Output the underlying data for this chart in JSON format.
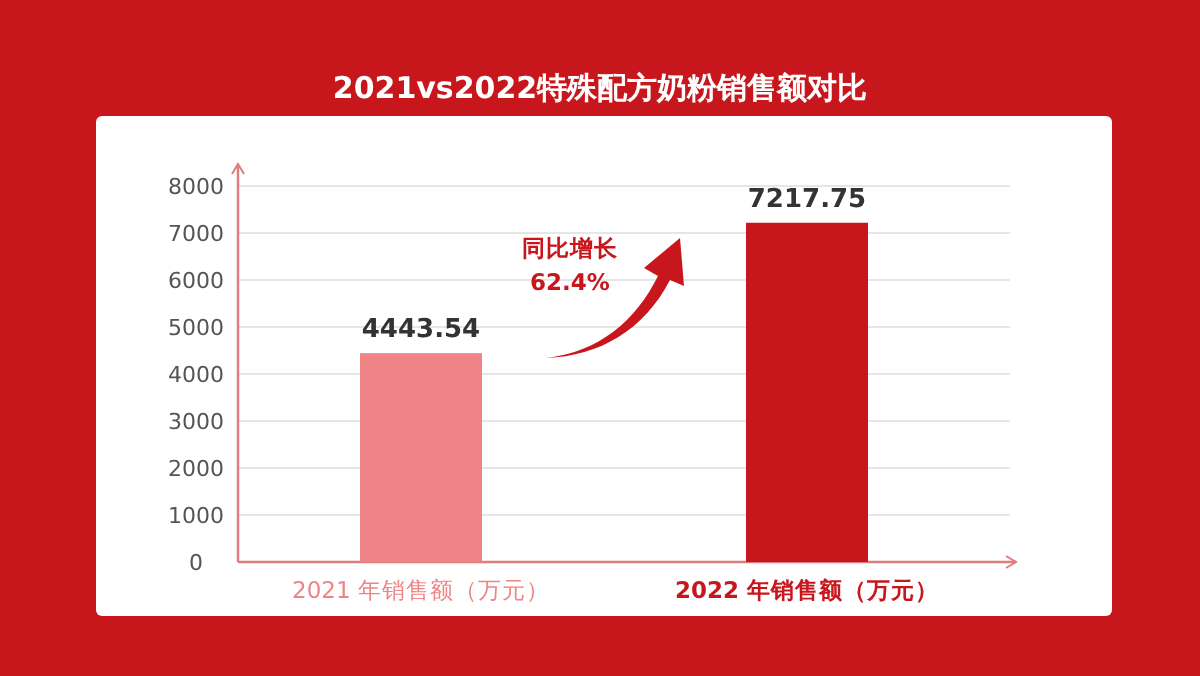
{
  "chart_data": {
    "type": "bar",
    "title": "2021vs2022特殊配方奶粉销售额对比",
    "categories": [
      "2021 年销售额（万元）",
      "2022 年销售额（万元）"
    ],
    "values": [
      4443.54,
      7217.75
    ],
    "colors": [
      "#ee8486",
      "#c8161d"
    ],
    "ylim": [
      0,
      8000
    ],
    "yticks": [
      0,
      1000,
      2000,
      3000,
      4000,
      5000,
      6000,
      7000,
      8000
    ],
    "grid": "y",
    "data_labels": true,
    "annotations": [
      "同比增长 62.4%"
    ]
  }
}
